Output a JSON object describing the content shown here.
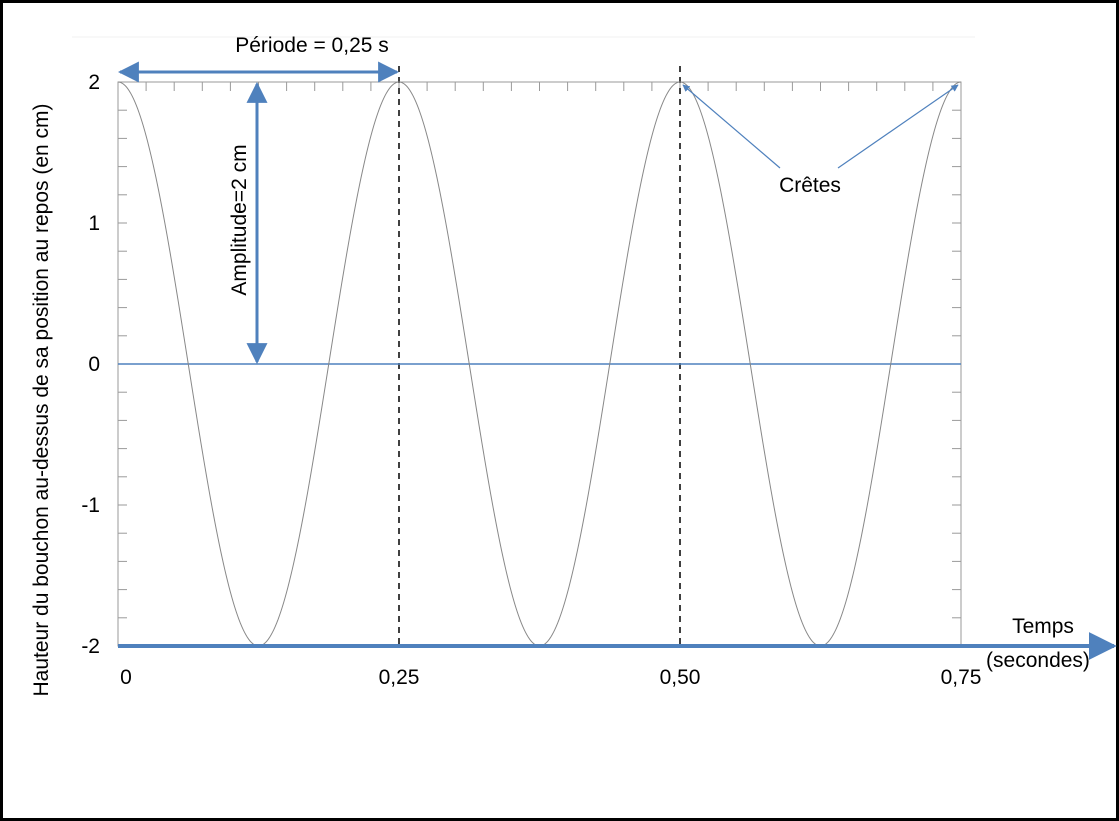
{
  "chart_data": {
    "type": "line",
    "ylabel": "Hauteur du bouchon au-dessus de sa position au repos (en cm)",
    "xlabel_line1": "Temps",
    "xlabel_line2": "(secondes)",
    "x_ticks": [
      "0",
      "0,25",
      "0,50",
      "0,75"
    ],
    "y_ticks": [
      "2",
      "1",
      "0",
      "-1",
      "-2"
    ],
    "xlim": [
      0,
      0.75
    ],
    "ylim": [
      -2,
      2
    ],
    "series": [
      {
        "function": "cosine",
        "amplitude": 2,
        "period": 0.25,
        "x_start": 0,
        "x_end": 0.75
      }
    ],
    "annotations": {
      "period_label": "Période = 0,25 s",
      "amplitude_label": "Amplitude=2 cm",
      "crest_label": "Crêtes"
    },
    "grid": false
  },
  "colors": {
    "arrow": "#4f81bd",
    "curve": "#888888",
    "axis": "#4f81bd",
    "dashed": "#000000"
  }
}
